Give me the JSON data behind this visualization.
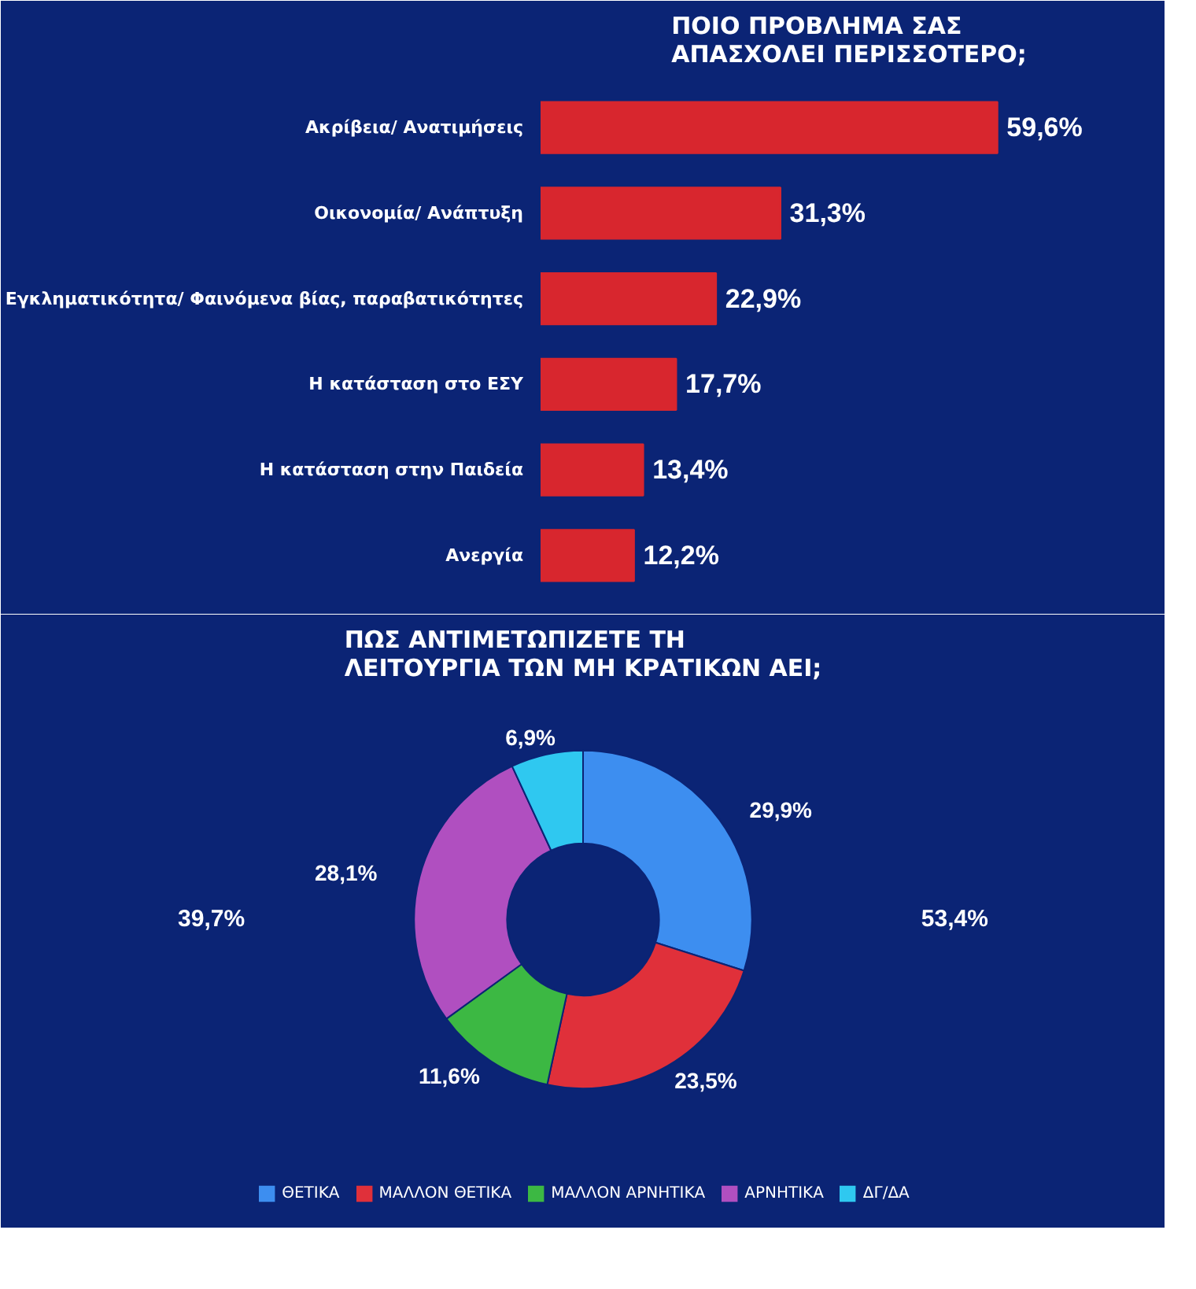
{
  "chart_data": [
    {
      "type": "bar",
      "orientation": "horizontal",
      "title": "ΠΟΙΟ ΠΡΟΒΛΗΜΑ ΣΑΣ ΑΠΑΣΧΟΛΕΙ ΠΕΡΙΣΣΟΤΕΡΟ;",
      "categories": [
        "Ακρίβεια/ Ανατιμήσεις",
        "Οικονομία/ Ανάπτυξη",
        "Εγκληματικότητα/ Φαινόμενα βίας, παραβατικότητες",
        "Η κατάσταση στο ΕΣΥ",
        "Η κατάσταση στην Παιδεία",
        "Ανεργία"
      ],
      "values": [
        59.6,
        31.3,
        22.9,
        17.7,
        13.4,
        12.2
      ],
      "color": "#d8262e",
      "value_labels": [
        "59,6%",
        "31,3%",
        "22,9%",
        "17,7%",
        "13,4%",
        "12,2%"
      ],
      "tick_labels": "y"
    },
    {
      "type": "donut",
      "title": "ΠΩΣ ΑΝΤΙΜΕΤΩΠΙΖΕΤΕ ΤΗ ΛΕΙΤΟΥΡΓΙΑ ΤΩΝ ΜΗ ΚΡΑΤΙΚΩΝ ΑΕΙ;",
      "categories": [
        "ΘΕΤΙΚΑ",
        "ΜΑΛΛΟΝ ΘΕΤΙΚΑ",
        "ΜΑΛΛΟΝ ΑΡΝΗΤΙΚΑ",
        "ΑΡΝΗΤΙΚΑ",
        "ΔΓ/ΔΑ"
      ],
      "values": [
        29.9,
        23.5,
        11.6,
        28.1,
        6.9
      ],
      "colors": [
        "#3d8ef0",
        "#e0303a",
        "#3cb843",
        "#b04fc0",
        "#2fc8f0"
      ],
      "value_labels": [
        "29,9%",
        "23,5%",
        "11,6%",
        "28,1%",
        "6,9%"
      ],
      "annotations": [
        "53,4%",
        "39,7%"
      ],
      "legend": "bottom"
    }
  ]
}
